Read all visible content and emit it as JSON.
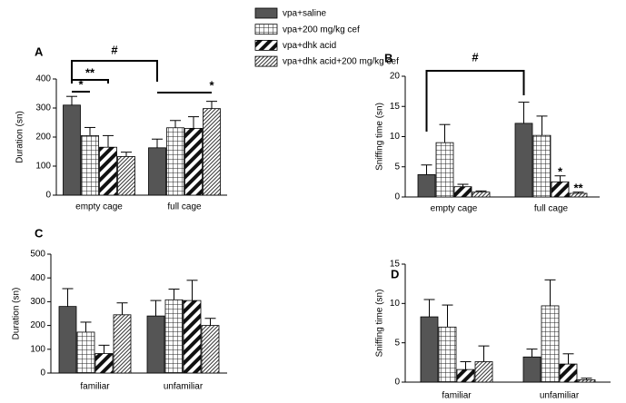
{
  "legend": [
    {
      "name": "vpa+saline",
      "color": "#555555",
      "pattern": "solid"
    },
    {
      "name": "vpa+200 mg/kg cef",
      "color": "#222222",
      "pattern": "grid"
    },
    {
      "name": "vpa+dhk acid",
      "color": "#111111",
      "pattern": "wide-diagonal"
    },
    {
      "name": "vpa+dhk acid+200 mg/kg cef",
      "color": "#333333",
      "pattern": "diagonal"
    }
  ],
  "chart_data": [
    {
      "type": "bar",
      "label": "A",
      "y_label": "Duration (sn)",
      "categories": [
        "empty cage",
        "full cage"
      ],
      "ylim": [
        0,
        400
      ],
      "yticks": [
        0,
        100,
        200,
        300,
        400
      ],
      "series": [
        {
          "values": [
            310,
            163
          ],
          "errors": [
            30,
            30
          ]
        },
        {
          "values": [
            205,
            232
          ],
          "errors": [
            28,
            25
          ]
        },
        {
          "values": [
            165,
            230
          ],
          "errors": [
            40,
            40
          ]
        },
        {
          "values": [
            133,
            298
          ],
          "errors": [
            15,
            25
          ]
        }
      ],
      "annotations": [
        "#",
        "**",
        "*",
        "*"
      ]
    },
    {
      "type": "bar",
      "label": "B",
      "y_label": "Sniffing time (sn)",
      "categories": [
        "empty cage",
        "full cage"
      ],
      "ylim": [
        0,
        20
      ],
      "yticks": [
        0,
        5,
        10,
        15,
        20
      ],
      "series": [
        {
          "values": [
            3.7,
            12.2
          ],
          "errors": [
            1.6,
            3.5
          ]
        },
        {
          "values": [
            9.0,
            10.2
          ],
          "errors": [
            3.0,
            3.2
          ]
        },
        {
          "values": [
            1.7,
            2.5
          ],
          "errors": [
            0.4,
            1.0
          ]
        },
        {
          "values": [
            0.8,
            0.6
          ],
          "errors": [
            0.2,
            0.2
          ]
        }
      ],
      "annotations": [
        "#",
        "*",
        "**"
      ]
    },
    {
      "type": "bar",
      "label": "C",
      "y_label": "Duration (sn)",
      "categories": [
        "familiar",
        "unfamiliar"
      ],
      "ylim": [
        0,
        500
      ],
      "yticks": [
        0,
        100,
        200,
        300,
        400,
        500
      ],
      "series": [
        {
          "values": [
            280,
            240
          ],
          "errors": [
            75,
            65
          ]
        },
        {
          "values": [
            172,
            308
          ],
          "errors": [
            42,
            45
          ]
        },
        {
          "values": [
            82,
            305
          ],
          "errors": [
            35,
            85
          ]
        },
        {
          "values": [
            245,
            200
          ],
          "errors": [
            50,
            30
          ]
        }
      ],
      "annotations": []
    },
    {
      "type": "bar",
      "label": "D",
      "y_label": "Sniffing time (sn)",
      "categories": [
        "familiar",
        "unfamiliar"
      ],
      "ylim": [
        0,
        15
      ],
      "yticks": [
        0,
        5,
        10,
        15
      ],
      "series": [
        {
          "values": [
            8.3,
            3.2
          ],
          "errors": [
            2.2,
            1.0
          ]
        },
        {
          "values": [
            7.0,
            9.7
          ],
          "errors": [
            2.8,
            3.3
          ]
        },
        {
          "values": [
            1.6,
            2.3
          ],
          "errors": [
            1.0,
            1.3
          ]
        },
        {
          "values": [
            2.6,
            0.3
          ],
          "errors": [
            2.0,
            0.2
          ]
        }
      ],
      "annotations": []
    }
  ]
}
